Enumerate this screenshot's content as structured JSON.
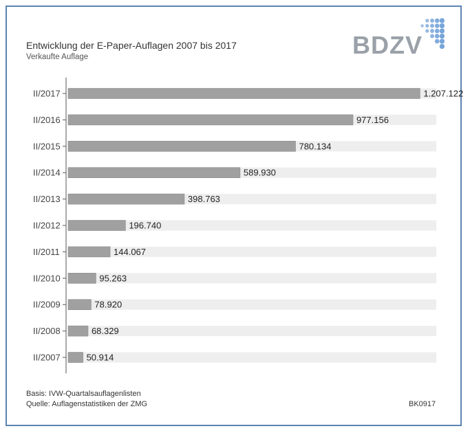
{
  "header": {
    "title": "Entwicklung der E-Paper-Auflagen 2007 bis 2017",
    "subtitle": "Verkaufte Auflage",
    "logo_text": "BDZV"
  },
  "footer": {
    "basis": "Basis: IVW-Quartalsauflagenlisten",
    "quelle": "Quelle: Auflagenstatistiken der ZMG",
    "code": "BK0917"
  },
  "colors": {
    "bar": "#a0a0a0",
    "bar_stroke": "#8a8a8a",
    "track": "#eeeeee",
    "frame": "#5b84b1",
    "logo": "#9aa1a8",
    "logo_dots": "#6f9fd8"
  },
  "chart_data": {
    "type": "bar",
    "orientation": "horizontal",
    "categories": [
      "II/2017",
      "II/2016",
      "II/2015",
      "II/2014",
      "II/2013",
      "II/2012",
      "II/2011",
      "II/2010",
      "II/2009",
      "II/2008",
      "II/2007"
    ],
    "values": [
      1207122,
      977156,
      780134,
      589930,
      398763,
      196740,
      144067,
      95263,
      78920,
      68329,
      50914
    ],
    "value_labels": [
      "1.207.122",
      "977.156",
      "780.134",
      "589.930",
      "398.763",
      "196.740",
      "144.067",
      "95.263",
      "78.920",
      "68.329",
      "50.914"
    ],
    "title": "Entwicklung der E-Paper-Auflagen 2007 bis 2017",
    "xlabel": "",
    "ylabel": "",
    "xlim": [
      0,
      1270000
    ],
    "grid": false,
    "legend": "none"
  }
}
